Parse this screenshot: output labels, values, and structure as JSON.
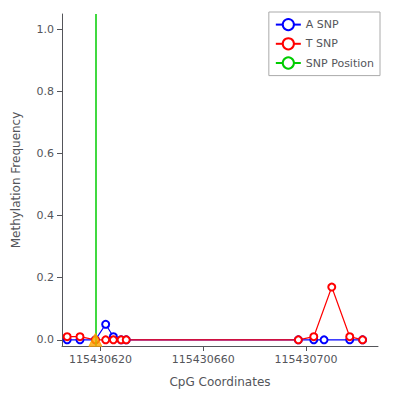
{
  "chart_data": {
    "type": "line",
    "xlabel": "CpG Coordinates",
    "ylabel": "Methylation Frequency",
    "xlim": [
      115430605,
      115430728
    ],
    "xticks": [
      115430620,
      115430660,
      115430700
    ],
    "ylim": [
      -0.02,
      1.05
    ],
    "yticks": [
      {
        "value": 0.0,
        "label": "0.0"
      },
      0.2,
      0.4,
      0.6,
      0.8,
      {
        "value": 1.0,
        "label": "1.0"
      }
    ],
    "grid": false,
    "legend": "upper right",
    "series": [
      {
        "name": "A SNP",
        "color": "#0000ff",
        "marker": "circle",
        "line_style": "solid",
        "x": [
          115430607,
          115430612,
          115430618,
          115430622,
          115430625,
          115430628,
          115430630,
          115430697,
          115430703,
          115430707,
          115430717,
          115430722
        ],
        "values": [
          0.0,
          0.0,
          0.0,
          0.05,
          0.01,
          0.0,
          0.0,
          0.0,
          0.0,
          0.0,
          0.0,
          0.0
        ]
      },
      {
        "name": "T SNP",
        "color": "#ff0000",
        "marker": "circle",
        "line_style": "solid",
        "x": [
          115430607,
          115430612,
          115430618,
          115430622,
          115430625,
          115430628,
          115430630,
          115430697,
          115430703,
          115430710,
          115430717,
          115430722
        ],
        "values": [
          0.01,
          0.01,
          0.0,
          0.0,
          0.0,
          0.0,
          0.0,
          0.0,
          0.01,
          0.17,
          0.01,
          0.0
        ]
      }
    ],
    "snp_position": {
      "name": "SNP Position",
      "x": 115430618,
      "color": "#00cc00",
      "line_style": "solid"
    },
    "triangle": {
      "x": 115430618,
      "y": 0.0,
      "color": "#ffa500",
      "marker": "triangle"
    }
  }
}
